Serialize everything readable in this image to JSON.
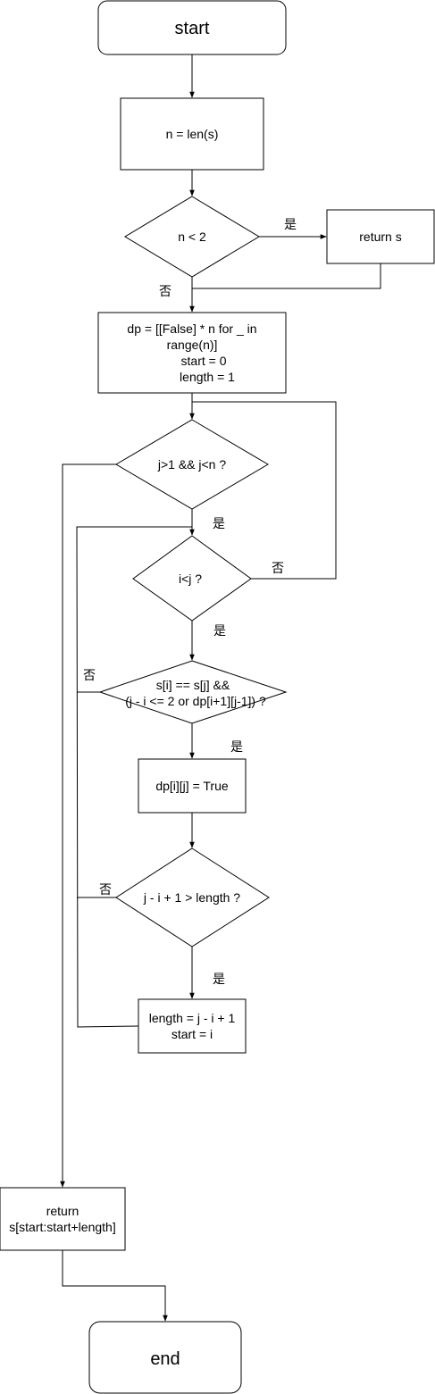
{
  "nodes": {
    "start": {
      "label": "start"
    },
    "n_assign": {
      "label": "n = len(s)"
    },
    "cond_n_lt_2": {
      "label": "n < 2"
    },
    "return_s": {
      "label": "return s"
    },
    "init": {
      "lines": [
        "dp = [[False] * n for _ in",
        "range(n)]",
        "start = 0",
        "length = 1"
      ]
    },
    "cond_j": {
      "label": "j>1 && j<n ?"
    },
    "cond_i_lt_j": {
      "label": "i<j ?"
    },
    "cond_palin": {
      "lines": [
        "s[i] == s[j] &&",
        "(j - i <= 2 or dp[i+1][j-1]) ?"
      ]
    },
    "set_dp": {
      "label": "dp[i][j] = True"
    },
    "cond_len": {
      "label": "j - i + 1 > length ?"
    },
    "update": {
      "lines": [
        "length = j - i + 1",
        "start = i"
      ]
    },
    "return_sub": {
      "lines": [
        "return",
        "s[start:start+length]"
      ]
    },
    "end": {
      "label": "end"
    }
  },
  "edge_labels": {
    "n_lt_2_yes": "是",
    "n_lt_2_no": "否",
    "cond_j_yes": "是",
    "i_lt_j_no": "否",
    "i_lt_j_yes": "是",
    "palin_no": "否",
    "palin_yes": "是",
    "len_no": "否",
    "len_yes": "是"
  }
}
